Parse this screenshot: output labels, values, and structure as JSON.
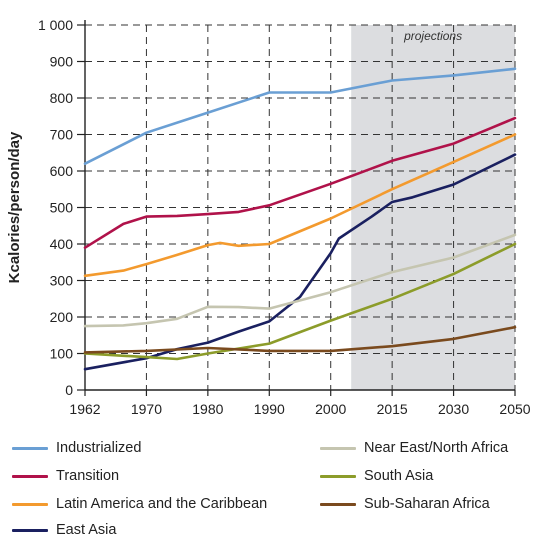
{
  "chart_data": {
    "type": "line",
    "ylabel": "Kcalories/person/day",
    "xlabel": "",
    "annotation": "projections",
    "projection_start": 2005,
    "x_ticks": [
      "1962",
      "1970",
      "1980",
      "1990",
      "2000",
      "2015",
      "2030",
      "2050"
    ],
    "y_ticks": [
      "0",
      "100",
      "200",
      "300",
      "400",
      "500",
      "600",
      "700",
      "800",
      "900",
      "1 000"
    ],
    "ylim": [
      0,
      1000
    ],
    "grid": true,
    "legend_position": "bottom",
    "series": [
      {
        "name": "Industrialized",
        "color": "#6a9fd4",
        "x": [
          1962,
          1970,
          1980,
          1990,
          2000,
          2015,
          2030,
          2050
        ],
        "y": [
          620,
          705,
          760,
          815,
          815,
          848,
          862,
          880
        ]
      },
      {
        "name": "Transition",
        "color": "#b0124a",
        "x": [
          1962,
          1967,
          1970,
          1975,
          1980,
          1985,
          1990,
          2000,
          2015,
          2030,
          2050
        ],
        "y": [
          390,
          455,
          475,
          477,
          482,
          488,
          506,
          565,
          628,
          675,
          745
        ]
      },
      {
        "name": "Latin America and the Caribbean",
        "color": "#f39a2e",
        "x": [
          1962,
          1967,
          1970,
          1975,
          1980,
          1982,
          1985,
          1990,
          2000,
          2015,
          2030,
          2050
        ],
        "y": [
          313,
          327,
          345,
          370,
          397,
          403,
          395,
          400,
          470,
          550,
          625,
          700
        ]
      },
      {
        "name": "East Asia",
        "color": "#1a2060",
        "x": [
          1962,
          1970,
          1975,
          1980,
          1985,
          1990,
          1995,
          2000,
          2002,
          2010,
          2015,
          2020,
          2030,
          2050
        ],
        "y": [
          57,
          87,
          112,
          130,
          160,
          188,
          255,
          375,
          415,
          475,
          515,
          528,
          563,
          645
        ]
      },
      {
        "name": "Near East/North Africa",
        "color": "#c5c5b0",
        "x": [
          1962,
          1967,
          1970,
          1975,
          1980,
          1985,
          1990,
          2000,
          2015,
          2030,
          2050
        ],
        "y": [
          175,
          177,
          183,
          195,
          228,
          227,
          223,
          268,
          323,
          363,
          425
        ]
      },
      {
        "name": "South Asia",
        "color": "#8c9c2a",
        "x": [
          1962,
          1970,
          1975,
          1980,
          1990,
          2000,
          2015,
          2030,
          2050
        ],
        "y": [
          100,
          90,
          85,
          100,
          127,
          190,
          250,
          318,
          400
        ]
      },
      {
        "name": "Sub-Saharan Africa",
        "color": "#7a4a1e",
        "x": [
          1962,
          1970,
          1980,
          1990,
          2000,
          2015,
          2030,
          2050
        ],
        "y": [
          103,
          107,
          115,
          107,
          107,
          120,
          140,
          172
        ]
      }
    ]
  }
}
